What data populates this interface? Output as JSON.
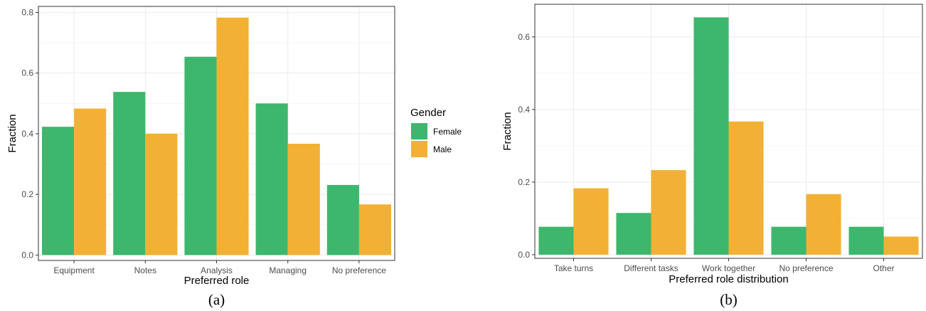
{
  "colors": {
    "Female": "#3db76d",
    "Male": "#f2b035"
  },
  "legend": {
    "title": "Gender",
    "entries": [
      {
        "name": "Female",
        "color": "#3db76d"
      },
      {
        "name": "Male",
        "color": "#f2b035"
      }
    ]
  },
  "chart_data": [
    {
      "type": "bar",
      "caption": "(a)",
      "xlabel": "Preferred role",
      "ylabel": "Fraction",
      "categories": [
        "Equipment",
        "Notes",
        "Analysis",
        "Managing",
        "No preference"
      ],
      "ylim": [
        -0.018,
        0.82
      ],
      "yticks": [
        0.0,
        0.2,
        0.4,
        0.6,
        0.8
      ],
      "ytick_labels": [
        "0.0",
        "0.2",
        "0.4",
        "0.6",
        "0.8"
      ],
      "grid": true,
      "series": [
        {
          "name": "Female",
          "values": [
            0.423,
            0.538,
            0.654,
            0.5,
            0.231
          ]
        },
        {
          "name": "Male",
          "values": [
            0.483,
            0.4,
            0.783,
            0.367,
            0.167
          ]
        }
      ]
    },
    {
      "type": "bar",
      "caption": "(b)",
      "xlabel": "Preferred role distribution",
      "ylabel": "Fraction",
      "categories": [
        "Take turns",
        "Different tasks",
        "Work together",
        "No preference",
        "Other"
      ],
      "ylim": [
        -0.01,
        0.69
      ],
      "yticks": [
        0.0,
        0.2,
        0.4,
        0.6
      ],
      "ytick_labels": [
        "0.0",
        "0.2",
        "0.4",
        "0.6"
      ],
      "grid": true,
      "series": [
        {
          "name": "Female",
          "values": [
            0.077,
            0.115,
            0.654,
            0.077,
            0.077
          ]
        },
        {
          "name": "Male",
          "values": [
            0.183,
            0.233,
            0.367,
            0.167,
            0.05
          ]
        }
      ]
    }
  ]
}
